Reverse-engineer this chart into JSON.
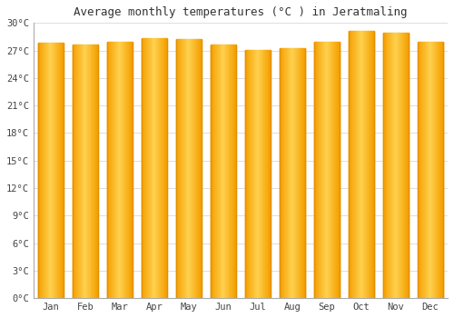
{
  "title": "Average monthly temperatures (°C ) in Jeratmaling",
  "months": [
    "Jan",
    "Feb",
    "Mar",
    "Apr",
    "May",
    "Jun",
    "Jul",
    "Aug",
    "Sep",
    "Oct",
    "Nov",
    "Dec"
  ],
  "values": [
    27.8,
    27.7,
    27.9,
    28.3,
    28.2,
    27.7,
    27.1,
    27.3,
    27.9,
    29.1,
    28.9,
    27.9
  ],
  "bar_color_center": "#FFD060",
  "bar_color_edge": "#F5A000",
  "background_color": "#FFFFFF",
  "plot_bg_color": "#FFFFFF",
  "grid_color": "#DDDDDD",
  "ylim": [
    0,
    30
  ],
  "yticks": [
    0,
    3,
    6,
    9,
    12,
    15,
    18,
    21,
    24,
    27,
    30
  ],
  "ytick_labels": [
    "0°C",
    "3°C",
    "6°C",
    "9°C",
    "12°C",
    "15°C",
    "18°C",
    "21°C",
    "24°C",
    "27°C",
    "30°C"
  ],
  "title_fontsize": 9,
  "tick_fontsize": 7.5,
  "bar_width": 0.75
}
